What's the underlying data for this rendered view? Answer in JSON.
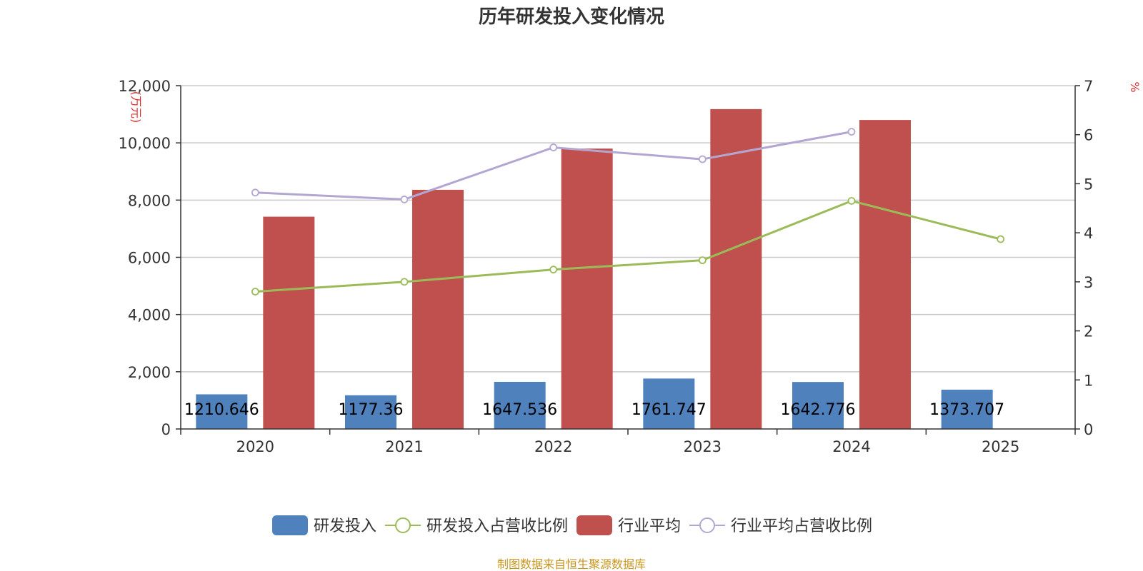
{
  "chart_data": {
    "type": "bar",
    "title": "历年研发投入变化情况",
    "categories": [
      "2020",
      "2021",
      "2022",
      "2023",
      "2024",
      "2025"
    ],
    "y_left": {
      "unit": "(万元)",
      "ylim": [
        0,
        12000
      ],
      "ticks": [
        "0",
        "2,000",
        "4,000",
        "6,000",
        "8,000",
        "10,000",
        "12,000"
      ],
      "tick_values": [
        0,
        2000,
        4000,
        6000,
        8000,
        10000,
        12000
      ]
    },
    "y_right": {
      "unit": "%",
      "ylim": [
        0,
        7
      ],
      "ticks": [
        "0",
        "1",
        "2",
        "3",
        "4",
        "5",
        "6",
        "7"
      ],
      "tick_values": [
        0,
        1,
        2,
        3,
        4,
        5,
        6,
        7
      ]
    },
    "series": [
      {
        "name": "研发投入",
        "type": "bar",
        "axis": "left",
        "color": "#4f81bd",
        "values": [
          1210.646,
          1177.36,
          1647.536,
          1761.747,
          1642.776,
          1373.707
        ],
        "labels": [
          "1210.646",
          "1177.36",
          "1647.536",
          "1761.747",
          "1642.776",
          "1373.707"
        ]
      },
      {
        "name": "研发投入占营收比例",
        "type": "line",
        "axis": "right",
        "color": "#9bbb59",
        "values": [
          2.8,
          3.0,
          3.25,
          3.44,
          4.65,
          3.87
        ]
      },
      {
        "name": "行业平均",
        "type": "bar",
        "axis": "left",
        "color": "#c0504d",
        "values": [
          7420,
          8360,
          9800,
          11180,
          10800,
          null
        ]
      },
      {
        "name": "行业平均占营收比例",
        "type": "line",
        "axis": "right",
        "color": "#b3a7d2",
        "values": [
          4.82,
          4.68,
          5.74,
          5.5,
          6.06,
          null
        ]
      }
    ],
    "grid": true,
    "legend_position": "bottom"
  },
  "footer": {
    "source": "制图数据来自恒生聚源数据库"
  }
}
